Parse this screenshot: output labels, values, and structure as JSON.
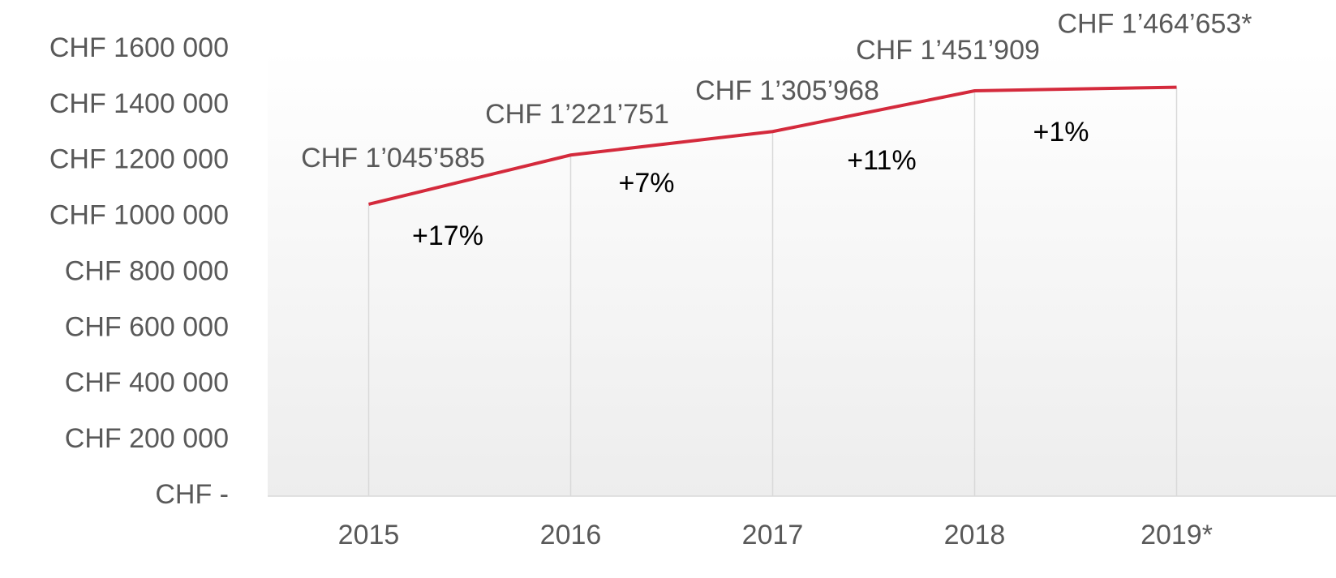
{
  "chart_data": {
    "type": "line",
    "categories": [
      "2015",
      "2016",
      "2017",
      "2018",
      "2019*"
    ],
    "series": [
      {
        "color": "#d42a3c",
        "values": [
          1045585,
          1221751,
          1305968,
          1451909,
          1464653
        ],
        "value_labels": [
          "CHF 1’045’585",
          "CHF 1’221’751",
          "CHF 1’305’968",
          "CHF 1’451’909",
          "CHF 1’464’653*"
        ]
      }
    ],
    "annotations": [
      "+17%",
      "+7%",
      "+11%",
      "+1%"
    ],
    "ylim": [
      0,
      1600000
    ],
    "yticks": [
      {
        "value": 0,
        "label": "CHF -"
      },
      {
        "value": 200000,
        "label": "CHF 200 000"
      },
      {
        "value": 400000,
        "label": "CHF 400 000"
      },
      {
        "value": 600000,
        "label": "CHF 600 000"
      },
      {
        "value": 800000,
        "label": "CHF 800 000"
      },
      {
        "value": 1000000,
        "label": "CHF 1000 000"
      },
      {
        "value": 1200000,
        "label": "CHF 1200 000"
      },
      {
        "value": 1400000,
        "label": "CHF 1400 000"
      },
      {
        "value": 1600000,
        "label": "CHF 1600 000"
      }
    ]
  }
}
